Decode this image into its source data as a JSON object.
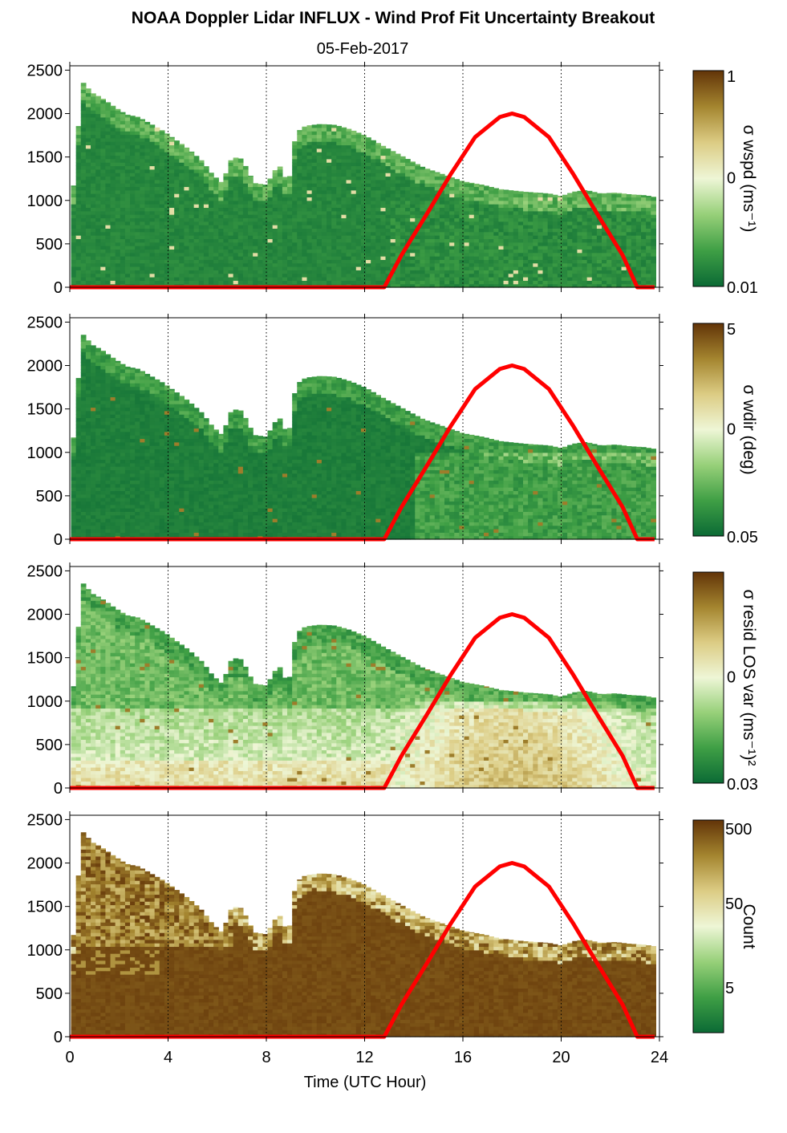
{
  "chart_data": {
    "type": "heatmap",
    "title": "NOAA Doppler Lidar INFLUX - Wind Prof Fit Uncertainty Breakout",
    "subtitle": "05-Feb-2017",
    "xlabel": "Time (UTC Hour)",
    "xlim": [
      0,
      24
    ],
    "x_ticks": [
      "0",
      "4",
      "8",
      "12",
      "16",
      "20",
      "24"
    ],
    "ylim": [
      0,
      2550
    ],
    "y_ticks": [
      "0",
      "500",
      "1000",
      "1500",
      "2000",
      "2500"
    ],
    "grid": "dotted vertical lines every 4 hours",
    "colormap": [
      "#0b6a35",
      "#3f9f45",
      "#97d079",
      "#eef6d6",
      "#dccc84",
      "#a4852f",
      "#623408"
    ],
    "overlay_color": "#ff0000",
    "overlay_curve": {
      "name": "",
      "x": [
        0,
        12.8,
        13.5,
        14.5,
        15.5,
        16.5,
        17.5,
        18.0,
        18.5,
        19.5,
        20.5,
        21.5,
        22.5,
        23.1,
        23.8
      ],
      "y": [
        0,
        0,
        370,
        830,
        1300,
        1730,
        1960,
        2000,
        1960,
        1730,
        1300,
        830,
        370,
        0,
        0
      ]
    },
    "data_top_profile": {
      "x": [
        0.1,
        0.5,
        0.9,
        1.3,
        1.8,
        2.3,
        2.8,
        3.3,
        3.8,
        4.2,
        4.7,
        5.0,
        5.4,
        5.8,
        6.2,
        6.6,
        7.0,
        7.5,
        8.0,
        8.5,
        8.9,
        9.2,
        9.6,
        10.2,
        10.8,
        11.4,
        12.0,
        12.8,
        13.6,
        14.4,
        15.2,
        16.0,
        16.8,
        17.5,
        18.5,
        19.5,
        20.0,
        20.5,
        21.0,
        21.6,
        22.2,
        22.8,
        23.4,
        23.8
      ],
      "y": [
        1000,
        2370,
        2240,
        2180,
        2080,
        1990,
        1960,
        1880,
        1800,
        1720,
        1620,
        1550,
        1450,
        1300,
        1200,
        1500,
        1480,
        1200,
        1180,
        1420,
        1180,
        1780,
        1860,
        1880,
        1870,
        1820,
        1750,
        1620,
        1500,
        1380,
        1300,
        1220,
        1180,
        1130,
        1100,
        1080,
        1050,
        1100,
        1120,
        1080,
        1090,
        1070,
        1060,
        1040
      ]
    },
    "panels": [
      {
        "id": "sigma_wspd",
        "description": "fit uncertainty in wind speed",
        "colorbar_label": "σ wspd (ms⁻¹)",
        "colorbar_ticks": [
          "1",
          "0",
          "0.01"
        ],
        "colorbar_scale": "log",
        "dominant_level": "low (dark green)"
      },
      {
        "id": "sigma_wdir",
        "description": "fit uncertainty in wind direction",
        "colorbar_label": "σ wdir (deg)",
        "colorbar_ticks": [
          "5",
          "0",
          "0.05"
        ],
        "colorbar_scale": "log",
        "dominant_level": "low (dark green)"
      },
      {
        "id": "sigma_resid",
        "description": "residual line-of-sight variance",
        "colorbar_label": "σ resid LOS var (ms⁻¹)²",
        "colorbar_ticks": [
          "",
          "0",
          "0.03"
        ],
        "colorbar_scale": "log",
        "dominant_level": "moderate near surface during daytime"
      },
      {
        "id": "count",
        "description": "number of points in fit",
        "colorbar_label": "Count",
        "colorbar_ticks": [
          "500",
          "50",
          "5"
        ],
        "colorbar_scale": "log",
        "dominant_level": "high (dark brown)"
      }
    ]
  }
}
